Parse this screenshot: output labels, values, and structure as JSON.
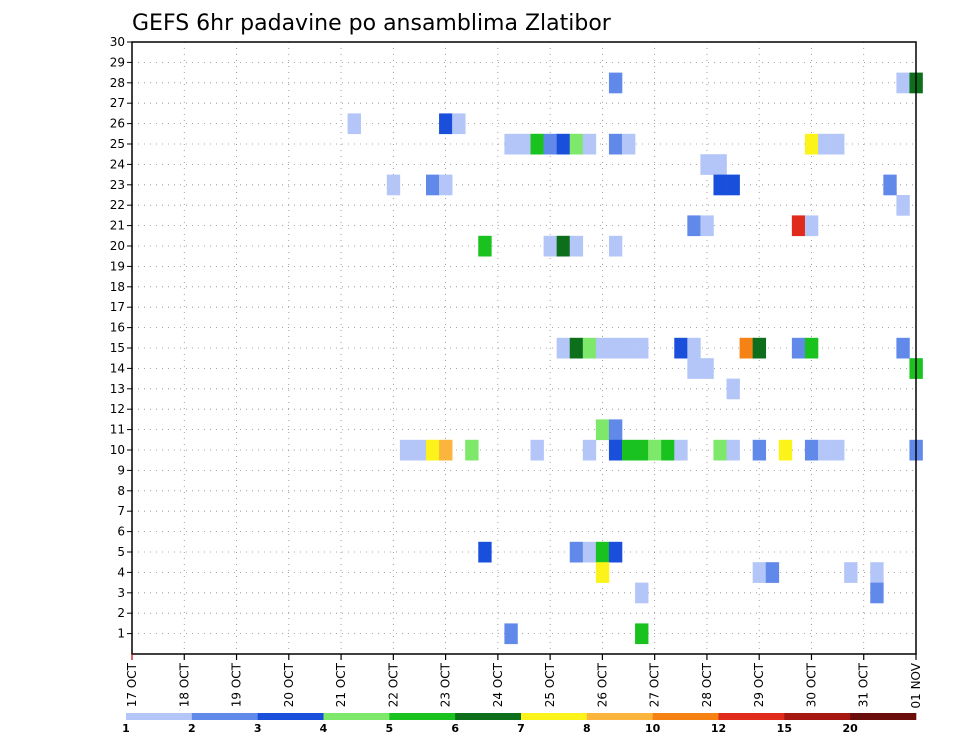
{
  "chart_data": {
    "type": "heatmap",
    "title": "GEFS 6hr padavine po ansamblima Zlatibor",
    "x_labels": [
      "17 OCT",
      "18 OCT",
      "19 OCT",
      "20 OCT",
      "21 OCT",
      "22 OCT",
      "23 OCT",
      "24 OCT",
      "25 OCT",
      "26 OCT",
      "27 OCT",
      "28 OCT",
      "29 OCT",
      "30 OCT",
      "31 OCT",
      "01 NOV"
    ],
    "x_range_days": [
      0,
      15
    ],
    "y_labels": [
      "1",
      "2",
      "3",
      "4",
      "5",
      "6",
      "7",
      "8",
      "9",
      "10",
      "11",
      "12",
      "13",
      "14",
      "15",
      "16",
      "17",
      "18",
      "19",
      "20",
      "21",
      "22",
      "23",
      "24",
      "25",
      "26",
      "27",
      "28",
      "29",
      "30"
    ],
    "y_range": [
      0,
      30
    ],
    "grid": true,
    "legend_placement": "bottom",
    "legend": {
      "labels": [
        "1",
        "2",
        "3",
        "4",
        "5",
        "6",
        "7",
        "8",
        "10",
        "12",
        "15",
        "20"
      ],
      "colors": [
        "#b3c6f7",
        "#6189ea",
        "#1a4fdc",
        "#7de86a",
        "#19c21f",
        "#0d6e1b",
        "#fbf31a",
        "#fcb53c",
        "#f68214",
        "#e02a1c",
        "#a61712",
        "#6b0d0a"
      ]
    },
    "note_units": "x = day offset from 17 OCT (6-hour steps of 0.25); y = ensemble member; level = legend bin index (0 = 1-2 ... 6 = 8-10)",
    "cells": [
      [
        14.75,
        28,
        0
      ],
      [
        15,
        28,
        5
      ],
      [
        9.25,
        28,
        1
      ],
      [
        4.25,
        26,
        0
      ],
      [
        6,
        26,
        2
      ],
      [
        6.25,
        26,
        0
      ],
      [
        7.25,
        25,
        0
      ],
      [
        7.5,
        25,
        0
      ],
      [
        7.75,
        25,
        4
      ],
      [
        8,
        25,
        1
      ],
      [
        8.25,
        25,
        2
      ],
      [
        8.5,
        25,
        3
      ],
      [
        8.75,
        25,
        0
      ],
      [
        9.25,
        25,
        1
      ],
      [
        9.5,
        25,
        0
      ],
      [
        13,
        25,
        6
      ],
      [
        13.25,
        25,
        0
      ],
      [
        13.5,
        25,
        0
      ],
      [
        11,
        24,
        0
      ],
      [
        11.25,
        24,
        0
      ],
      [
        5,
        23,
        0
      ],
      [
        5.75,
        23,
        1
      ],
      [
        6,
        23,
        0
      ],
      [
        11.25,
        23,
        2
      ],
      [
        11.5,
        23,
        2
      ],
      [
        14.5,
        23,
        1
      ],
      [
        14.75,
        22,
        0
      ],
      [
        10.75,
        21,
        1
      ],
      [
        11,
        21,
        0
      ],
      [
        12.75,
        21,
        9
      ],
      [
        13,
        21,
        0
      ],
      [
        6.75,
        20,
        4
      ],
      [
        8,
        20,
        0
      ],
      [
        8.25,
        20,
        5
      ],
      [
        8.5,
        20,
        0
      ],
      [
        9.25,
        20,
        0
      ],
      [
        8.25,
        15,
        0
      ],
      [
        8.5,
        15,
        5
      ],
      [
        8.75,
        15,
        3
      ],
      [
        9,
        15,
        0
      ],
      [
        9.25,
        15,
        0
      ],
      [
        9.5,
        15,
        0
      ],
      [
        9.75,
        15,
        0
      ],
      [
        10.5,
        15,
        2
      ],
      [
        10.75,
        15,
        0
      ],
      [
        11.75,
        15,
        8
      ],
      [
        12,
        15,
        5
      ],
      [
        12.75,
        15,
        1
      ],
      [
        13,
        15,
        4
      ],
      [
        14.75,
        15,
        1
      ],
      [
        10.75,
        14,
        0
      ],
      [
        11,
        14,
        0
      ],
      [
        15,
        14,
        4
      ],
      [
        11.5,
        13,
        0
      ],
      [
        9,
        11,
        3
      ],
      [
        9.25,
        11,
        1
      ],
      [
        5.25,
        10,
        0
      ],
      [
        5.5,
        10,
        0
      ],
      [
        5.75,
        10,
        6
      ],
      [
        6,
        10,
        7
      ],
      [
        6.5,
        10,
        3
      ],
      [
        7.75,
        10,
        0
      ],
      [
        8.75,
        10,
        0
      ],
      [
        9.25,
        10,
        2
      ],
      [
        9.5,
        10,
        4
      ],
      [
        9.75,
        10,
        4
      ],
      [
        10,
        10,
        3
      ],
      [
        10.25,
        10,
        4
      ],
      [
        10.5,
        10,
        0
      ],
      [
        11.25,
        10,
        3
      ],
      [
        11.5,
        10,
        0
      ],
      [
        12,
        10,
        1
      ],
      [
        12.5,
        10,
        6
      ],
      [
        13,
        10,
        1
      ],
      [
        13.25,
        10,
        0
      ],
      [
        13.5,
        10,
        0
      ],
      [
        15,
        10,
        1
      ],
      [
        6.75,
        5,
        2
      ],
      [
        8.5,
        5,
        1
      ],
      [
        8.75,
        5,
        0
      ],
      [
        9,
        5,
        4
      ],
      [
        9.25,
        5,
        2
      ],
      [
        9,
        4,
        6
      ],
      [
        12,
        4,
        0
      ],
      [
        12.25,
        4,
        1
      ],
      [
        13.75,
        4,
        0
      ],
      [
        14.25,
        4,
        0
      ],
      [
        9.75,
        3,
        0
      ],
      [
        14.25,
        3,
        1
      ],
      [
        7.25,
        1,
        1
      ],
      [
        9.75,
        1,
        4
      ]
    ]
  }
}
